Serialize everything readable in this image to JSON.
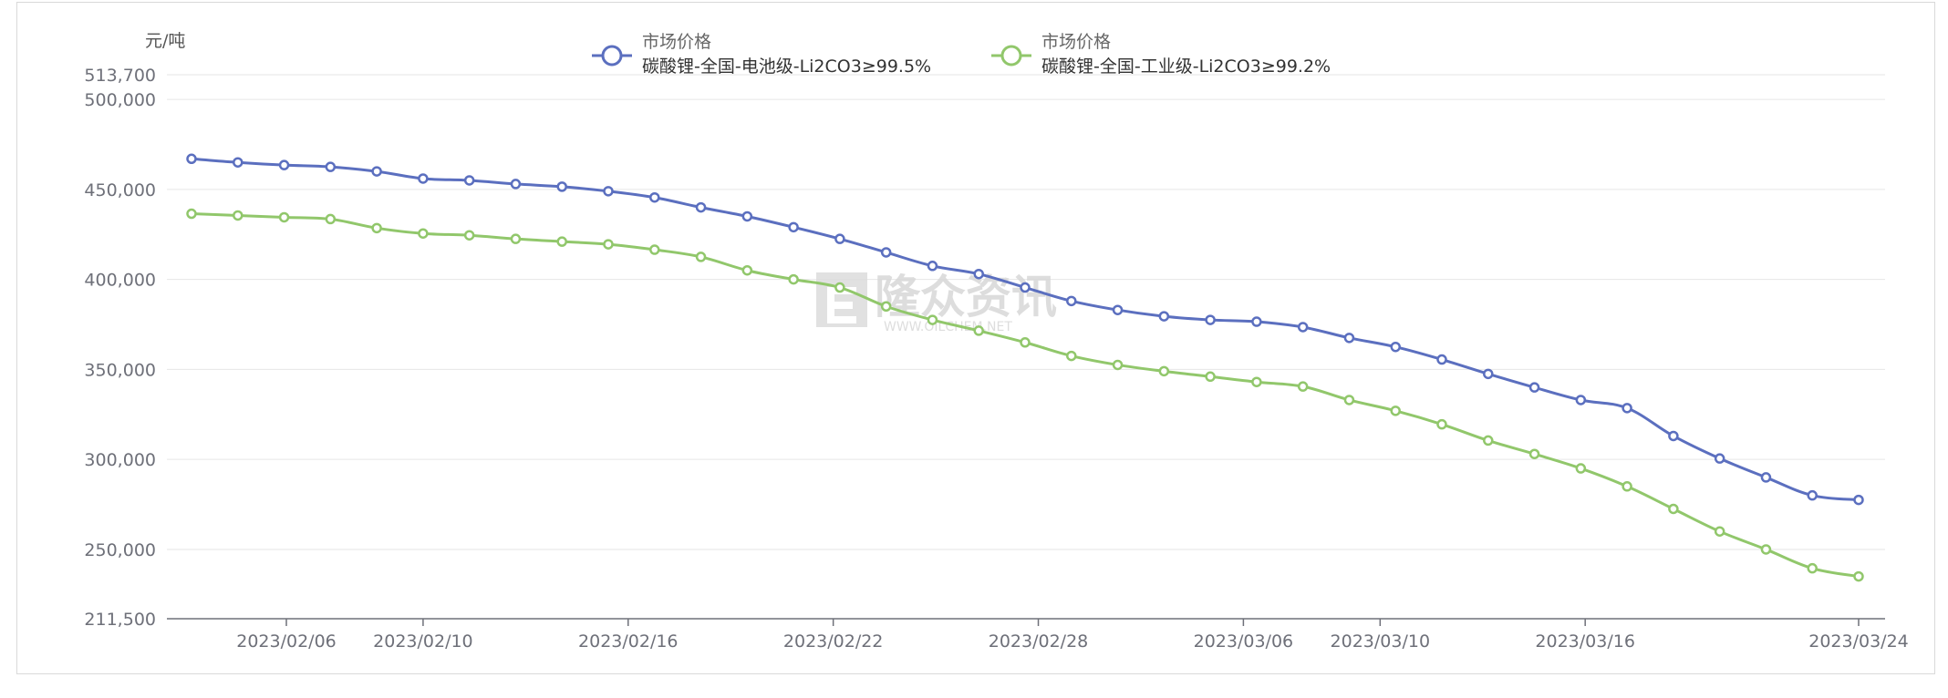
{
  "colors": {
    "battery": "#5b6fbf",
    "industrial": "#91c76b",
    "axis": "#6e7079",
    "grid": "#e6e6e6"
  },
  "watermark": {
    "name": "隆众资讯",
    "site": "WWW.OILCHEM.NET"
  },
  "chart_data": {
    "type": "line",
    "ylabel": "元/吨",
    "ylim": [
      211500,
      513700
    ],
    "y_ticks": [
      211500,
      250000,
      300000,
      350000,
      400000,
      450000,
      500000,
      513700
    ],
    "y_tick_labels": [
      "211,500",
      "250,000",
      "300,000",
      "350,000",
      "400,000",
      "450,000",
      "500,000",
      "513,700"
    ],
    "x_tick_labels": [
      "2023/02/06",
      "2023/02/10",
      "2023/02/16",
      "2023/02/22",
      "2023/02/28",
      "2023/03/06",
      "2023/03/10",
      "2023/03/16",
      "2023/03/24"
    ],
    "legend_group": "市场价格",
    "legend_position": "top",
    "x": [
      "2023/02/02",
      "2023/02/03",
      "2023/02/06",
      "2023/02/07",
      "2023/02/08",
      "2023/02/09",
      "2023/02/10",
      "2023/02/13",
      "2023/02/14",
      "2023/02/15",
      "2023/02/16",
      "2023/02/17",
      "2023/02/20",
      "2023/02/21",
      "2023/02/22",
      "2023/02/23",
      "2023/02/24",
      "2023/02/27",
      "2023/02/28",
      "2023/03/01",
      "2023/03/02",
      "2023/03/03",
      "2023/03/06",
      "2023/03/07",
      "2023/03/08",
      "2023/03/09",
      "2023/03/10",
      "2023/03/13",
      "2023/03/14",
      "2023/03/15",
      "2023/03/16",
      "2023/03/17",
      "2023/03/20",
      "2023/03/21",
      "2023/03/22",
      "2023/03/23",
      "2023/03/24"
    ],
    "series": [
      {
        "name": "碳酸锂-全国-电池级-Li2CO3≥99.5%",
        "color": "#5b6fbf",
        "values": [
          467000,
          465000,
          463500,
          462500,
          460000,
          456000,
          455000,
          453000,
          451500,
          449000,
          445500,
          440000,
          435000,
          429000,
          422500,
          415000,
          407500,
          403000,
          395500,
          388000,
          383000,
          379500,
          377500,
          376500,
          373500,
          367500,
          362500,
          355500,
          347500,
          340000,
          333000,
          328500,
          313000,
          300500,
          290000,
          280000,
          277500
        ]
      },
      {
        "name": "碳酸锂-全国-工业级-Li2CO3≥99.2%",
        "color": "#91c76b",
        "values": [
          436500,
          435500,
          434500,
          433500,
          428500,
          425500,
          424500,
          422500,
          421000,
          419500,
          416500,
          412500,
          405000,
          400000,
          395500,
          385000,
          377500,
          371500,
          365000,
          357500,
          352500,
          349000,
          346000,
          343000,
          340500,
          333000,
          327000,
          319500,
          310500,
          303000,
          295000,
          285000,
          272500,
          260000,
          250000,
          239500,
          235000
        ]
      }
    ]
  }
}
